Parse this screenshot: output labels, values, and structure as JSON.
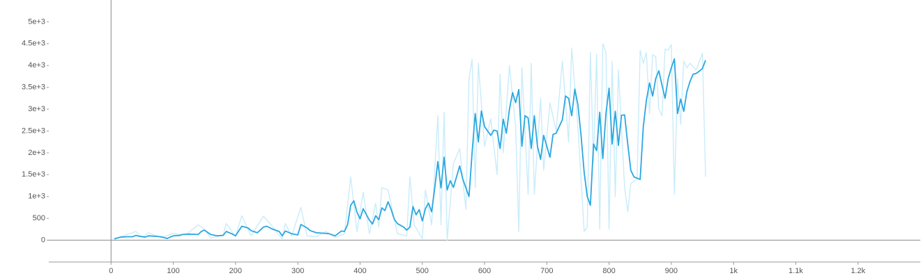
{
  "chart_data": {
    "type": "line",
    "xlim": [
      -100,
      1300
    ],
    "xticks": [
      0,
      100,
      200,
      300,
      400,
      500,
      600,
      700,
      800,
      900,
      {
        "value": 1000,
        "label": "1k"
      },
      {
        "value": 1100,
        "label": "1.1k"
      },
      {
        "value": 1200,
        "label": "1.2k"
      }
    ],
    "ylim": [
      -500,
      5500
    ],
    "yticks": [
      0,
      500,
      {
        "value": 1000,
        "label": "1e+3"
      },
      {
        "value": 1500,
        "label": "1.5e+3"
      },
      {
        "value": 2000,
        "label": "2e+3"
      },
      {
        "value": 2500,
        "label": "2.5e+3"
      },
      {
        "value": 3000,
        "label": "3e+3"
      },
      {
        "value": 3500,
        "label": "3.5e+3"
      },
      {
        "value": 4000,
        "label": "4e+3"
      },
      {
        "value": 4500,
        "label": "4.5e+3"
      },
      {
        "value": 5000,
        "label": "5e+3"
      }
    ],
    "series": [
      {
        "color": "#c9ecfa",
        "x": [
          5,
          20,
          40,
          50,
          60,
          80,
          100,
          120,
          140,
          150,
          160,
          180,
          185,
          200,
          210,
          225,
          245,
          260,
          275,
          280,
          290,
          305,
          315,
          330,
          345,
          360,
          375,
          385,
          395,
          405,
          415,
          425,
          430,
          435,
          445,
          460,
          475,
          480,
          487,
          500,
          505,
          515,
          525,
          530,
          535,
          540,
          550,
          560,
          570,
          575,
          580,
          585,
          590,
          600,
          610,
          620,
          625,
          630,
          640,
          650,
          655,
          660,
          670,
          675,
          680,
          690,
          695,
          705,
          715,
          725,
          735,
          740,
          750,
          760,
          765,
          770,
          775,
          780,
          785,
          790,
          795,
          800,
          805,
          810,
          815,
          825,
          830,
          835,
          845,
          850,
          855,
          860,
          865,
          870,
          875,
          880,
          885,
          890,
          895,
          900,
          905,
          910,
          915,
          920,
          925,
          930,
          940,
          950,
          955
        ],
        "values": [
          30,
          100,
          200,
          60,
          170,
          60,
          150,
          120,
          350,
          250,
          50,
          120,
          380,
          80,
          560,
          100,
          550,
          300,
          30,
          380,
          100,
          750,
          100,
          80,
          200,
          60,
          150,
          1450,
          200,
          1100,
          150,
          850,
          300,
          1200,
          1150,
          150,
          100,
          1450,
          350,
          30,
          1150,
          350,
          2850,
          350,
          2930,
          0,
          1750,
          2100,
          700,
          3700,
          4150,
          1200,
          4050,
          2150,
          2780,
          1500,
          3800,
          2000,
          4000,
          2600,
          200,
          3950,
          1050,
          4050,
          1050,
          3250,
          1600,
          3150,
          2500,
          4100,
          2250,
          4400,
          2600,
          200,
          300,
          4300,
          1800,
          4260,
          250,
          4500,
          4300,
          250,
          4100,
          1000,
          3900,
          1200,
          650,
          1300,
          1400,
          4350,
          4050,
          4300,
          2900,
          4250,
          4200,
          3000,
          2850,
          4380,
          4350,
          4480,
          1050,
          3700,
          2650,
          4100,
          3950,
          4050,
          3900,
          4280,
          1450
        ]
      },
      {
        "color": "#2aa7df",
        "x": [
          5,
          15,
          25,
          35,
          40,
          45,
          55,
          60,
          70,
          80,
          90,
          100,
          110,
          115,
          125,
          140,
          145,
          150,
          160,
          170,
          180,
          185,
          195,
          200,
          210,
          220,
          225,
          235,
          245,
          250,
          260,
          270,
          275,
          280,
          290,
          300,
          305,
          315,
          320,
          330,
          340,
          350,
          360,
          370,
          375,
          380,
          385,
          390,
          395,
          400,
          405,
          415,
          420,
          425,
          430,
          435,
          440,
          445,
          450,
          455,
          460,
          470,
          475,
          480,
          485,
          490,
          495,
          500,
          505,
          510,
          515,
          520,
          525,
          530,
          535,
          540,
          545,
          550,
          555,
          560,
          565,
          570,
          575,
          580,
          585,
          590,
          595,
          600,
          610,
          615,
          620,
          625,
          630,
          635,
          640,
          645,
          650,
          655,
          660,
          665,
          670,
          675,
          680,
          685,
          690,
          695,
          700,
          705,
          710,
          715,
          725,
          730,
          735,
          740,
          745,
          750,
          755,
          760,
          765,
          770,
          775,
          780,
          785,
          790,
          795,
          800,
          805,
          810,
          815,
          820,
          825,
          830,
          835,
          840,
          850,
          855,
          860,
          865,
          870,
          875,
          880,
          885,
          890,
          895,
          900,
          905,
          910,
          915,
          920,
          925,
          930,
          935,
          940,
          945,
          950,
          955
        ],
        "values": [
          30,
          70,
          80,
          80,
          110,
          90,
          70,
          100,
          90,
          80,
          40,
          100,
          110,
          130,
          140,
          130,
          200,
          230,
          130,
          100,
          110,
          200,
          140,
          100,
          320,
          280,
          220,
          170,
          300,
          320,
          250,
          200,
          100,
          210,
          150,
          120,
          360,
          280,
          220,
          170,
          160,
          150,
          100,
          210,
          200,
          360,
          800,
          900,
          640,
          490,
          720,
          460,
          370,
          560,
          470,
          740,
          680,
          880,
          700,
          480,
          380,
          300,
          230,
          300,
          770,
          580,
          700,
          440,
          720,
          850,
          650,
          1200,
          1800,
          1200,
          1900,
          1150,
          1360,
          1210,
          1450,
          1700,
          1400,
          1200,
          1000,
          2000,
          2900,
          2250,
          2960,
          2600,
          2400,
          2520,
          2500,
          2100,
          2770,
          2450,
          3000,
          3380,
          3150,
          3450,
          2150,
          2850,
          2800,
          2100,
          2850,
          2150,
          1850,
          2400,
          2150,
          1900,
          2420,
          2450,
          2760,
          3300,
          3250,
          2850,
          3460,
          3100,
          2400,
          1550,
          1000,
          800,
          2200,
          2050,
          2930,
          1870,
          2900,
          3480,
          2200,
          2950,
          2170,
          2860,
          2870,
          2200,
          1600,
          1450,
          1390,
          2600,
          3200,
          3600,
          3300,
          3700,
          3880,
          3550,
          3250,
          3700,
          3950,
          4150,
          2900,
          3230,
          2950,
          3400,
          3630,
          3800,
          3820,
          3870,
          3930,
          4120
        ]
      }
    ]
  }
}
